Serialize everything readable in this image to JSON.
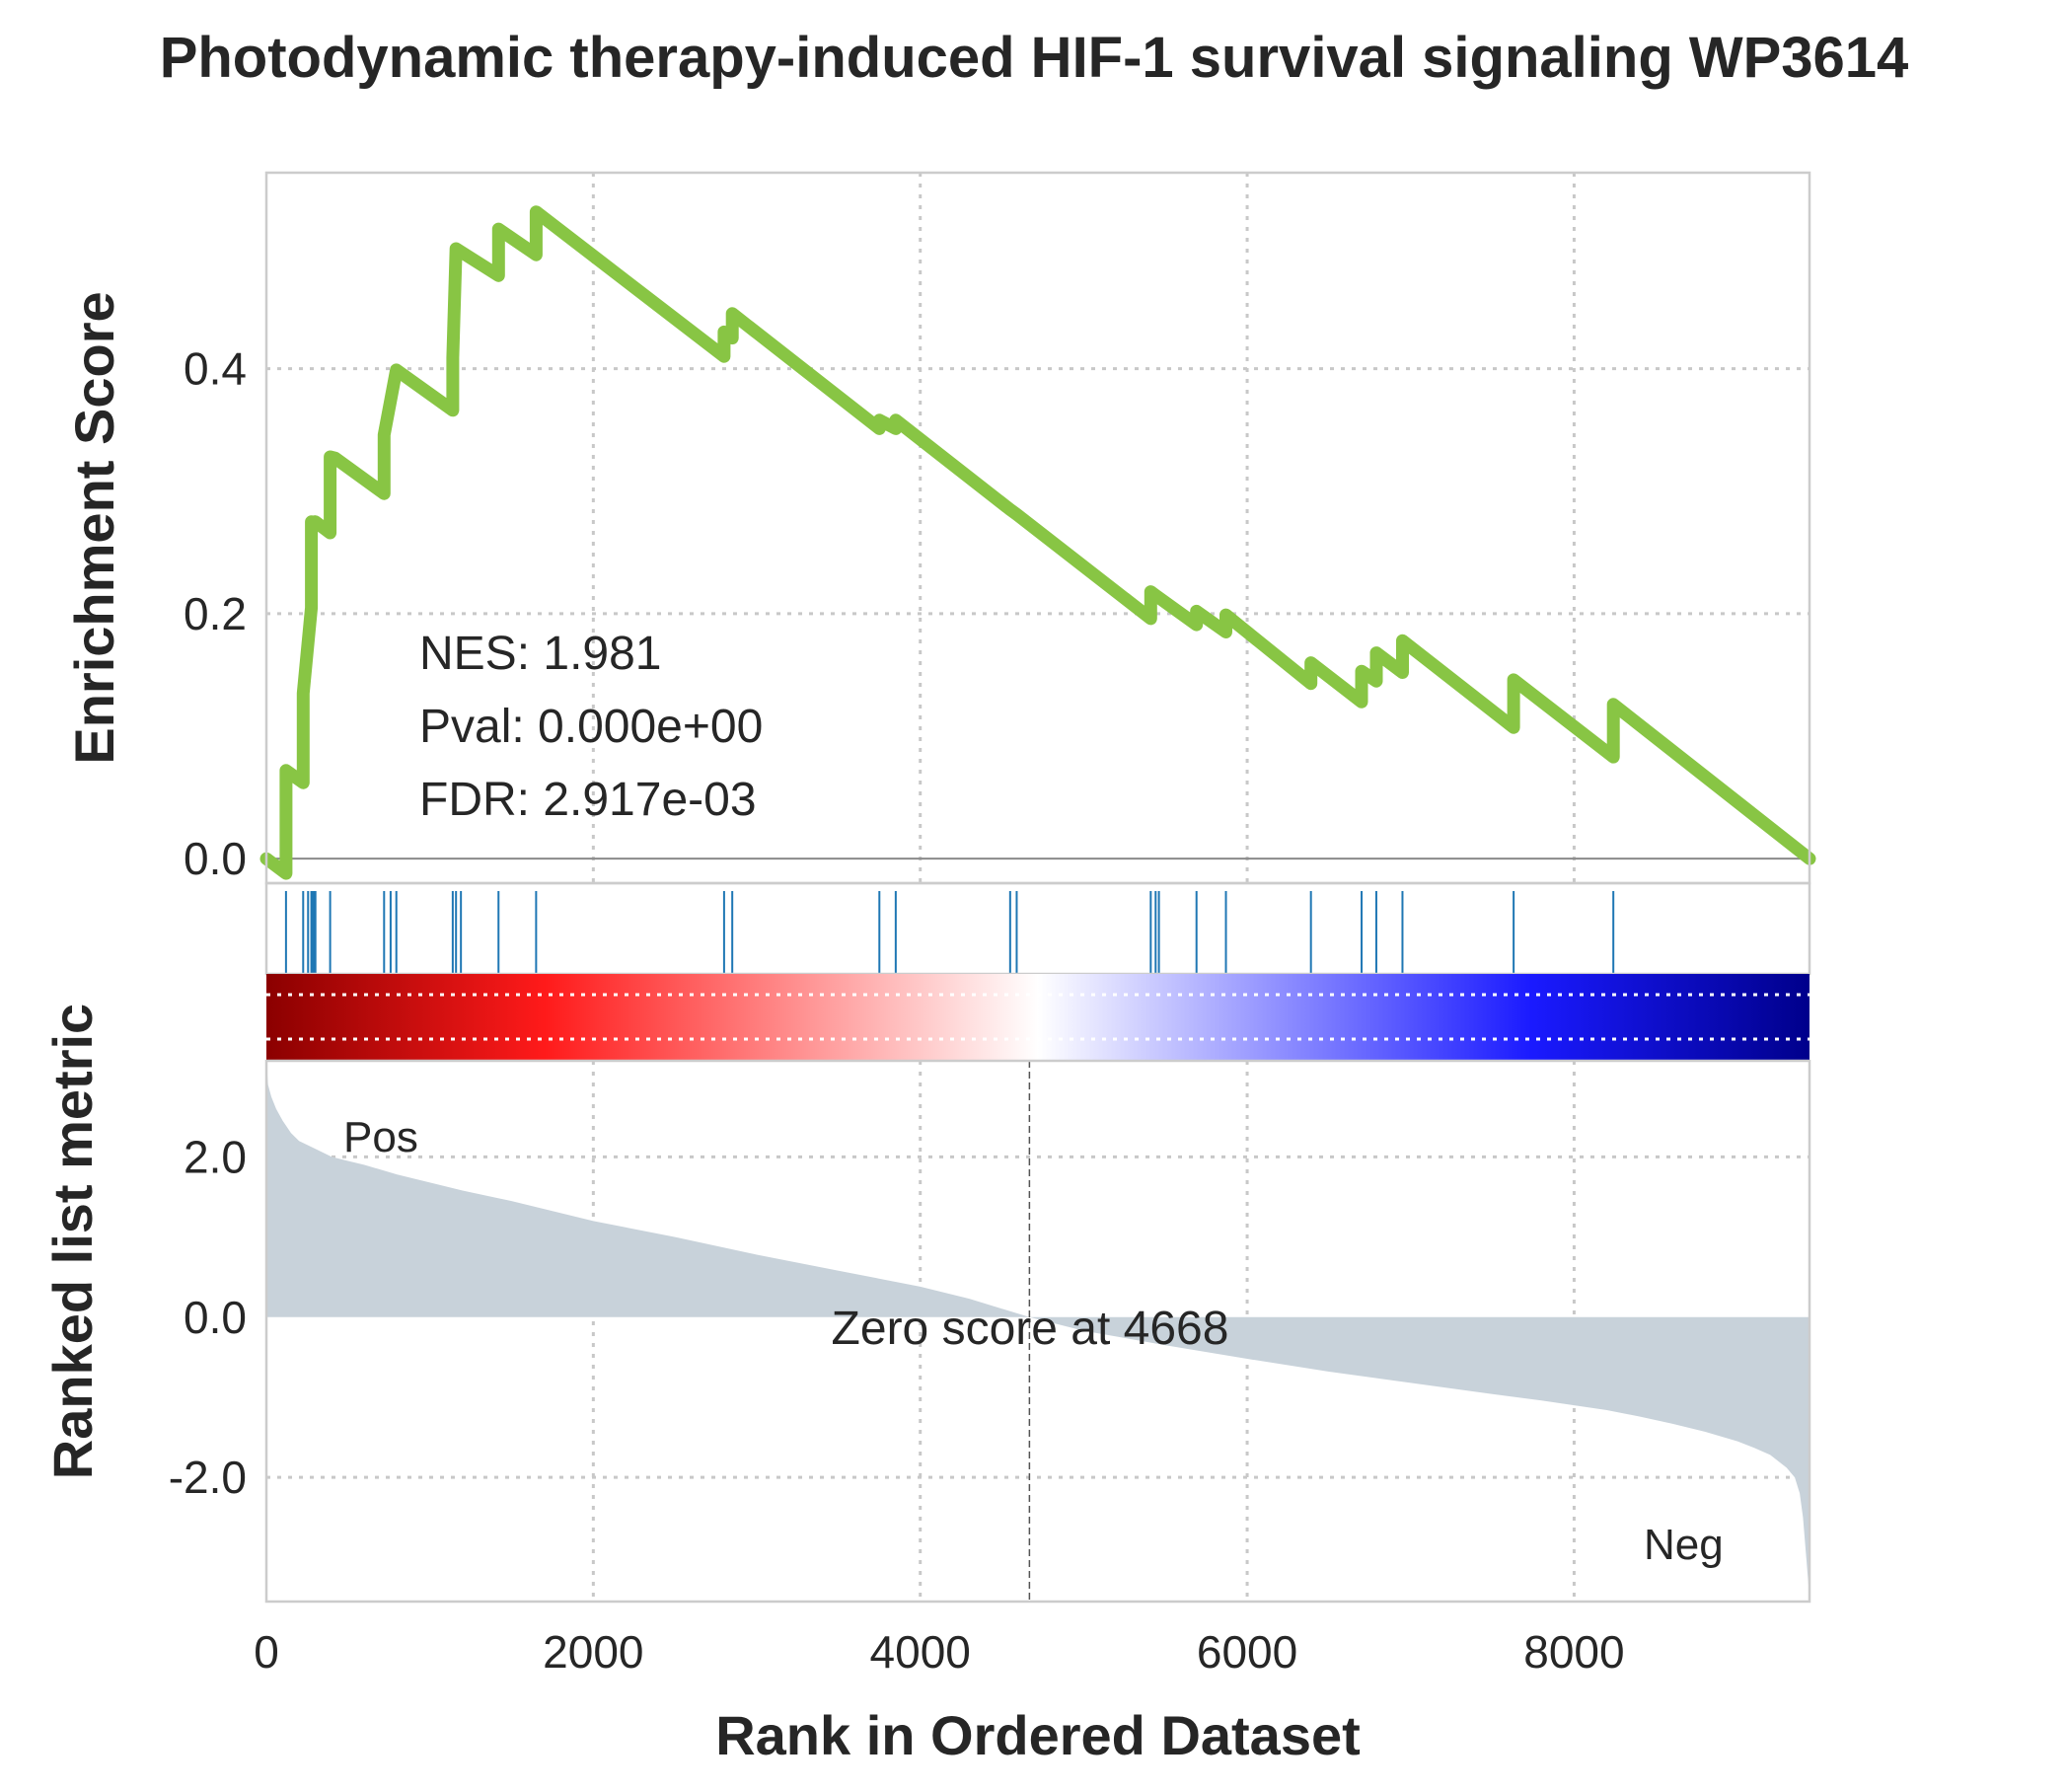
{
  "chart_data": {
    "type": "line",
    "title": "Photodynamic therapy-induced HIF-1 survival signaling WP3614",
    "xlabel": "Rank in Ordered Dataset",
    "xlim": [
      0,
      9440
    ],
    "x_ticks": [
      "0",
      "2000",
      "4000",
      "6000",
      "8000"
    ],
    "x_tick_values": [
      0,
      2000,
      4000,
      6000,
      8000
    ],
    "grid": true,
    "top_panel": {
      "ylabel": "Enrichment Score",
      "ylim": [
        -0.02,
        0.56
      ],
      "y_ticks": [
        "0.0",
        "0.2",
        "0.4"
      ],
      "y_tick_values": [
        0.0,
        0.2,
        0.4
      ],
      "series": [
        {
          "color": "#88c544",
          "x": [
            0,
            120,
            120,
            225,
            225,
            275,
            275,
            295,
            295,
            300,
            300,
            390,
            390,
            420,
            420,
            720,
            720,
            795,
            795,
            1140,
            1140,
            1160,
            1160,
            1420,
            1420,
            1650,
            1650,
            2800,
            2800,
            2850,
            2850,
            3750,
            3750,
            3850,
            3850,
            4550,
            4550,
            4590,
            4590,
            5410,
            5410,
            5440,
            5440,
            5690,
            5690,
            5870,
            5870,
            6390,
            6390,
            6700,
            6700,
            6790,
            6790,
            6950,
            6950,
            7630,
            7630,
            8240,
            8240,
            9440
          ],
          "y": [
            0.0,
            -0.012,
            0.072,
            0.062,
            0.135,
            0.205,
            0.275,
            0.272,
            0.275,
            0.274,
            0.275,
            0.266,
            0.328,
            0.327,
            0.327,
            0.298,
            0.346,
            0.399,
            0.399,
            0.366,
            0.409,
            0.498,
            0.498,
            0.476,
            0.514,
            0.493,
            0.528,
            0.41,
            0.43,
            0.425,
            0.445,
            0.351,
            0.358,
            0.351,
            0.358,
            0.285,
            0.285,
            0.281,
            0.281,
            0.196,
            0.218,
            0.215,
            0.215,
            0.191,
            0.202,
            0.185,
            0.199,
            0.143,
            0.16,
            0.128,
            0.153,
            0.145,
            0.168,
            0.152,
            0.178,
            0.107,
            0.146,
            0.083,
            0.126,
            0.0
          ]
        }
      ],
      "annotations": [
        "NES: 1.981",
        "Pval: 0.000e+00",
        "FDR: 2.917e-03"
      ]
    },
    "hit_ranks": [
      120,
      225,
      255,
      275,
      285,
      295,
      300,
      390,
      720,
      760,
      795,
      1140,
      1160,
      1190,
      1420,
      1650,
      2800,
      2850,
      3750,
      3850,
      4550,
      4590,
      5410,
      5440,
      5460,
      5690,
      5870,
      6390,
      6700,
      6790,
      6950,
      7630,
      8240
    ],
    "hit_color": "#1f77b4",
    "colorbar": {
      "from": "#8b0000",
      "mid": "#ffffff",
      "to": "#00008b"
    },
    "bottom_panel": {
      "ylabel": "Ranked list metric",
      "ylim": [
        -3.55,
        3.2
      ],
      "y_ticks": [
        "2.0",
        "0.0",
        "-2.0"
      ],
      "y_tick_values": [
        2.0,
        0.0,
        -2.0
      ],
      "fill_color": "#c8d2da",
      "x": [
        0,
        10,
        30,
        60,
        100,
        150,
        200,
        300,
        400,
        500,
        600,
        800,
        1000,
        1200,
        1500,
        2000,
        2500,
        3000,
        3500,
        4000,
        4300,
        4668,
        5000,
        5500,
        6000,
        6500,
        7000,
        7500,
        7800,
        8000,
        8200,
        8400,
        8600,
        8800,
        9000,
        9100,
        9200,
        9300,
        9350,
        9380,
        9400,
        9420,
        9440
      ],
      "y": [
        3.2,
        2.9,
        2.75,
        2.6,
        2.45,
        2.3,
        2.2,
        2.1,
        2.0,
        1.95,
        1.9,
        1.78,
        1.68,
        1.58,
        1.45,
        1.2,
        1.0,
        0.78,
        0.58,
        0.38,
        0.23,
        0.0,
        -0.17,
        -0.35,
        -0.52,
        -0.68,
        -0.82,
        -0.96,
        -1.04,
        -1.1,
        -1.16,
        -1.24,
        -1.33,
        -1.43,
        -1.55,
        -1.63,
        -1.72,
        -1.88,
        -2.0,
        -2.2,
        -2.5,
        -3.0,
        -3.5
      ],
      "zero_cross": 4668,
      "zero_label": "Zero score at 4668",
      "pos_label": "Pos",
      "neg_label": "Neg",
      "pos_color": "#ff0000",
      "neg_color": "#0000ff"
    }
  }
}
